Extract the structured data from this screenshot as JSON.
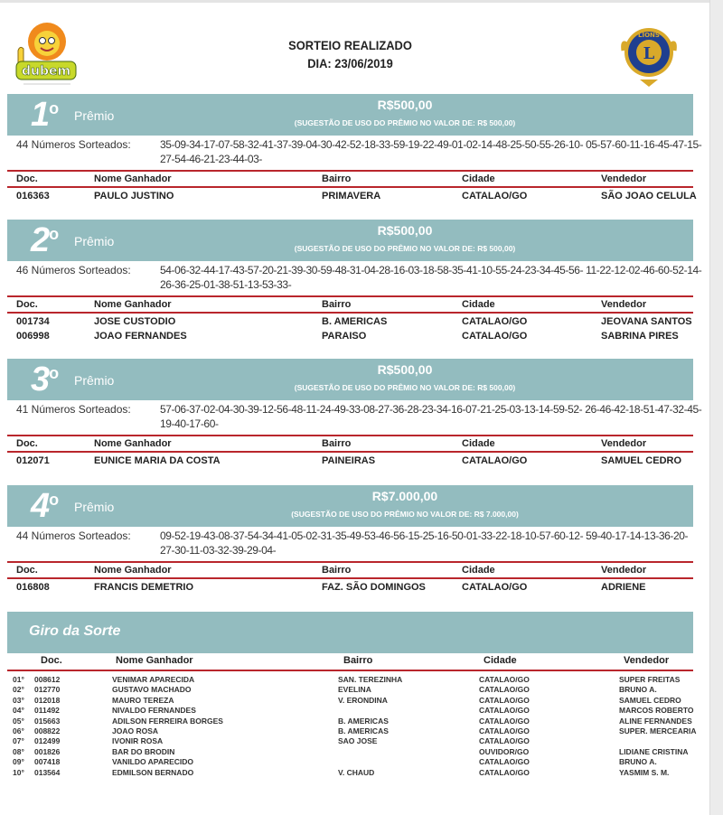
{
  "header": {
    "title": "SORTEIO REALIZADO",
    "date": "DIA: 23/06/2019",
    "logo_left_text": "prêmio dubem",
    "logo_right_text": "LIONS INTERNATIONAL"
  },
  "labels": {
    "premio": "Prêmio",
    "ordinal_suffix": "o",
    "columns": [
      "Doc.",
      "Nome Ganhador",
      "Bairro",
      "Cidade",
      "Vendedor"
    ]
  },
  "colors": {
    "band": "#93bcbf",
    "rule": "#b9262c"
  },
  "prizes": [
    {
      "number": "1",
      "amount": "R$500,00",
      "suggestion": "(SUGESTÃO DE USO DO PRÊMIO NO VALOR DE: R$ 500,00)",
      "numbers_label": "44 Números Sorteados:",
      "numbers": "35-09-34-17-07-58-32-41-37-39-04-30-42-52-18-33-59-19-22-49-01-02-14-48-25-50-55-26-10- 05-57-60-11-16-45-47-15-27-54-46-21-23-44-03-",
      "winners": [
        [
          "016363",
          "PAULO JUSTINO",
          "PRIMAVERA",
          "CATALAO/GO",
          "SÃO JOAO CELULA"
        ]
      ]
    },
    {
      "number": "2",
      "amount": "R$500,00",
      "suggestion": "(SUGESTÃO DE USO DO PRÊMIO NO VALOR DE: R$ 500,00)",
      "numbers_label": "46 Números Sorteados:",
      "numbers": "54-06-32-44-17-43-57-20-21-39-30-59-48-31-04-28-16-03-18-58-35-41-10-55-24-23-34-45-56- 11-22-12-02-46-60-52-14-26-36-25-01-38-51-13-53-33-",
      "winners": [
        [
          "001734",
          "JOSE CUSTODIO",
          "B. AMERICAS",
          "CATALAO/GO",
          "JEOVANA SANTOS"
        ],
        [
          "006998",
          "JOAO FERNANDES",
          "PARAISO",
          "CATALAO/GO",
          "SABRINA PIRES"
        ]
      ]
    },
    {
      "number": "3",
      "amount": "R$500,00",
      "suggestion": "(SUGESTÃO DE USO DO PRÊMIO NO VALOR DE: R$ 500,00)",
      "numbers_label": "41 Números Sorteados:",
      "numbers": "57-06-37-02-04-30-39-12-56-48-11-24-49-33-08-27-36-28-23-34-16-07-21-25-03-13-14-59-52- 26-46-42-18-51-47-32-45-19-40-17-60-",
      "winners": [
        [
          "012071",
          "EUNICE MARIA DA COSTA",
          "PAINEIRAS",
          "CATALAO/GO",
          "SAMUEL CEDRO"
        ]
      ]
    },
    {
      "number": "4",
      "amount": "R$7.000,00",
      "suggestion": "(SUGESTÃO DE USO DO PRÊMIO NO VALOR DE: R$ 7.000,00)",
      "numbers_label": "44 Números Sorteados:",
      "numbers": "09-52-19-43-08-37-54-34-41-05-02-31-35-49-53-46-56-15-25-16-50-01-33-22-18-10-57-60-12- 59-40-17-14-13-36-20-27-30-11-03-32-39-29-04-",
      "winners": [
        [
          "016808",
          "FRANCIS DEMETRIO",
          "FAZ. SÃO DOMINGOS",
          "CATALAO/GO",
          "ADRIENE"
        ]
      ]
    }
  ],
  "giro": {
    "title": "Giro da Sorte",
    "rows": [
      [
        "01°",
        "008612",
        "VENIMAR APARECIDA",
        "SAN. TEREZINHA",
        "CATALAO/GO",
        "SUPER FREITAS"
      ],
      [
        "02°",
        "012770",
        "GUSTAVO MACHADO",
        "EVELINA",
        "CATALAO/GO",
        "BRUNO A."
      ],
      [
        "03°",
        "012018",
        "MAURO TEREZA",
        "V. ERONDINA",
        "CATALAO/GO",
        "SAMUEL CEDRO"
      ],
      [
        "04°",
        "011492",
        "NIVALDO FERNANDES",
        "",
        "CATALAO/GO",
        "MARCOS ROBERTO"
      ],
      [
        "05°",
        "015663",
        "ADILSON FERREIRA BORGES",
        "B. AMERICAS",
        "CATALAO/GO",
        "ALINE FERNANDES"
      ],
      [
        "06°",
        "008822",
        "JOAO ROSA",
        "B. AMERICAS",
        "CATALAO/GO",
        "SUPER. MERCEARIA"
      ],
      [
        "07°",
        "012499",
        "IVONIR ROSA",
        "SAO JOSE",
        "CATALAO/GO",
        ""
      ],
      [
        "08°",
        "001826",
        "BAR DO BRODIN",
        "",
        "OUVIDOR/GO",
        "LIDIANE CRISTINA"
      ],
      [
        "09°",
        "007418",
        "VANILDO APARECIDO",
        "",
        "CATALAO/GO",
        "BRUNO A."
      ],
      [
        "10°",
        "013564",
        "EDMILSON BERNADO",
        "V. CHAUD",
        "CATALAO/GO",
        "YASMIM S. M."
      ]
    ]
  }
}
